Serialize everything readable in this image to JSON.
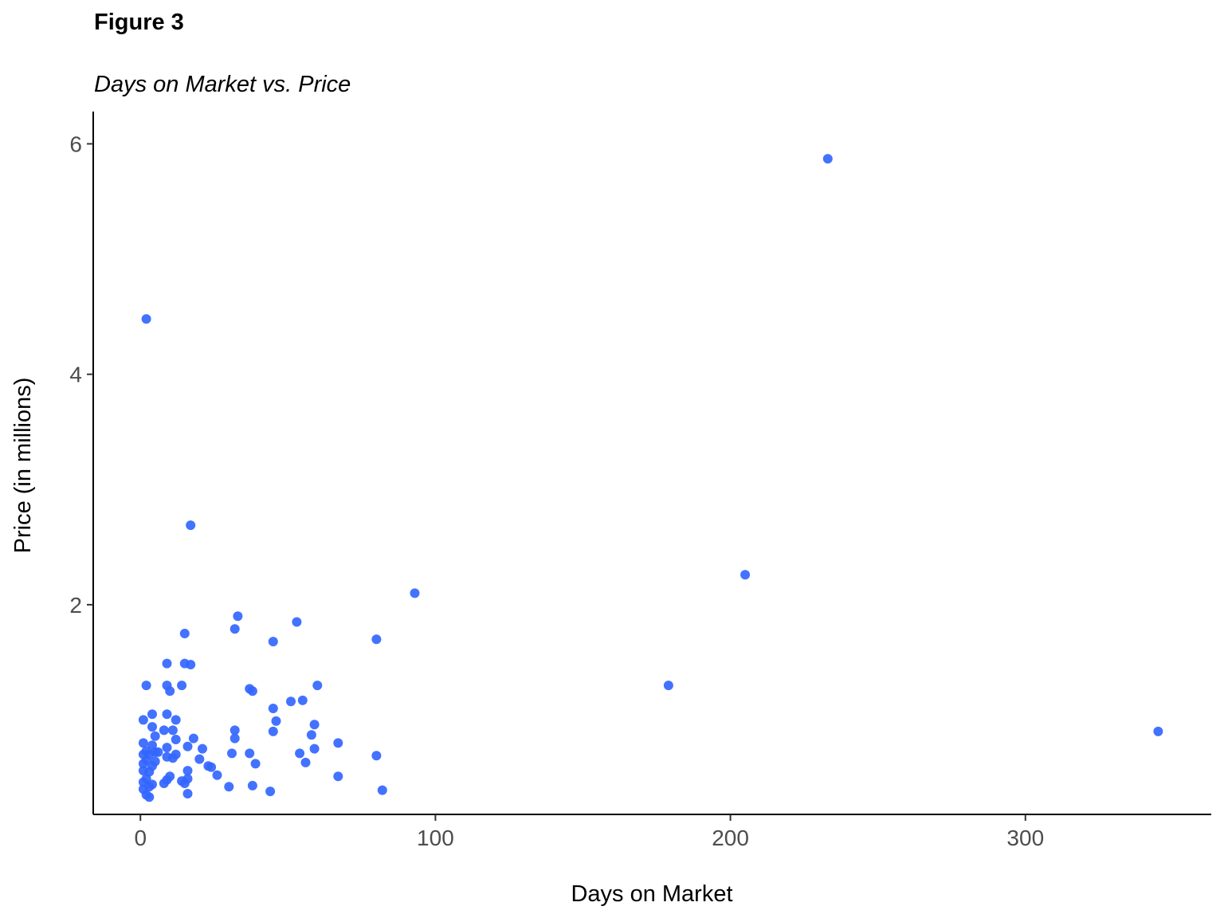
{
  "figure": {
    "label": "Figure 3",
    "title": "Days on Market vs. Price"
  },
  "chart_data": {
    "type": "scatter",
    "xlabel": "Days on Market",
    "ylabel": "Price (in millions)",
    "xlim": [
      -16,
      363
    ],
    "ylim": [
      0.18,
      6.28
    ],
    "xticks": [
      0,
      100,
      200,
      300
    ],
    "yticks": [
      2,
      4,
      6
    ],
    "grid": false,
    "legend": "none",
    "point_color": "#3366ff",
    "points": [
      [
        233,
        5.87
      ],
      [
        2,
        4.48
      ],
      [
        17,
        2.69
      ],
      [
        205,
        2.26
      ],
      [
        93,
        2.1
      ],
      [
        33,
        1.9
      ],
      [
        53,
        1.85
      ],
      [
        32,
        1.79
      ],
      [
        15,
        1.75
      ],
      [
        80,
        1.7
      ],
      [
        45,
        1.68
      ],
      [
        9,
        1.49
      ],
      [
        15,
        1.49
      ],
      [
        17,
        1.48
      ],
      [
        179,
        1.3
      ],
      [
        2,
        1.3
      ],
      [
        9,
        1.3
      ],
      [
        14,
        1.3
      ],
      [
        60,
        1.3
      ],
      [
        37,
        1.27
      ],
      [
        38,
        1.25
      ],
      [
        10,
        1.25
      ],
      [
        55,
        1.17
      ],
      [
        51,
        1.16
      ],
      [
        45,
        1.1
      ],
      [
        4,
        1.05
      ],
      [
        9,
        1.05
      ],
      [
        1,
        1.0
      ],
      [
        12,
        1.0
      ],
      [
        46,
        0.99
      ],
      [
        59,
        0.96
      ],
      [
        4,
        0.94
      ],
      [
        8,
        0.91
      ],
      [
        11,
        0.91
      ],
      [
        32,
        0.91
      ],
      [
        45,
        0.9
      ],
      [
        345,
        0.9
      ],
      [
        58,
        0.87
      ],
      [
        5,
        0.86
      ],
      [
        18,
        0.84
      ],
      [
        32,
        0.84
      ],
      [
        12,
        0.83
      ],
      [
        1,
        0.8
      ],
      [
        67,
        0.8
      ],
      [
        4,
        0.78
      ],
      [
        9,
        0.76
      ],
      [
        16,
        0.77
      ],
      [
        21,
        0.75
      ],
      [
        59,
        0.75
      ],
      [
        2,
        0.73
      ],
      [
        5,
        0.72
      ],
      [
        6,
        0.72
      ],
      [
        31,
        0.71
      ],
      [
        37,
        0.71
      ],
      [
        54,
        0.71
      ],
      [
        1,
        0.7
      ],
      [
        3,
        0.7
      ],
      [
        12,
        0.7
      ],
      [
        80,
        0.69
      ],
      [
        9,
        0.68
      ],
      [
        11,
        0.67
      ],
      [
        20,
        0.66
      ],
      [
        2,
        0.65
      ],
      [
        5,
        0.64
      ],
      [
        39,
        0.62
      ],
      [
        56,
        0.63
      ],
      [
        1,
        0.62
      ],
      [
        4,
        0.6
      ],
      [
        23,
        0.6
      ],
      [
        24,
        0.59
      ],
      [
        1,
        0.56
      ],
      [
        16,
        0.56
      ],
      [
        3,
        0.55
      ],
      [
        26,
        0.52
      ],
      [
        10,
        0.51
      ],
      [
        67,
        0.51
      ],
      [
        2,
        0.49
      ],
      [
        16,
        0.49
      ],
      [
        9,
        0.48
      ],
      [
        1,
        0.46
      ],
      [
        14,
        0.47
      ],
      [
        15,
        0.45
      ],
      [
        8,
        0.45
      ],
      [
        4,
        0.44
      ],
      [
        38,
        0.43
      ],
      [
        3,
        0.42
      ],
      [
        30,
        0.42
      ],
      [
        1,
        0.4
      ],
      [
        82,
        0.39
      ],
      [
        44,
        0.38
      ],
      [
        16,
        0.36
      ],
      [
        2,
        0.35
      ],
      [
        3,
        0.33
      ]
    ]
  }
}
